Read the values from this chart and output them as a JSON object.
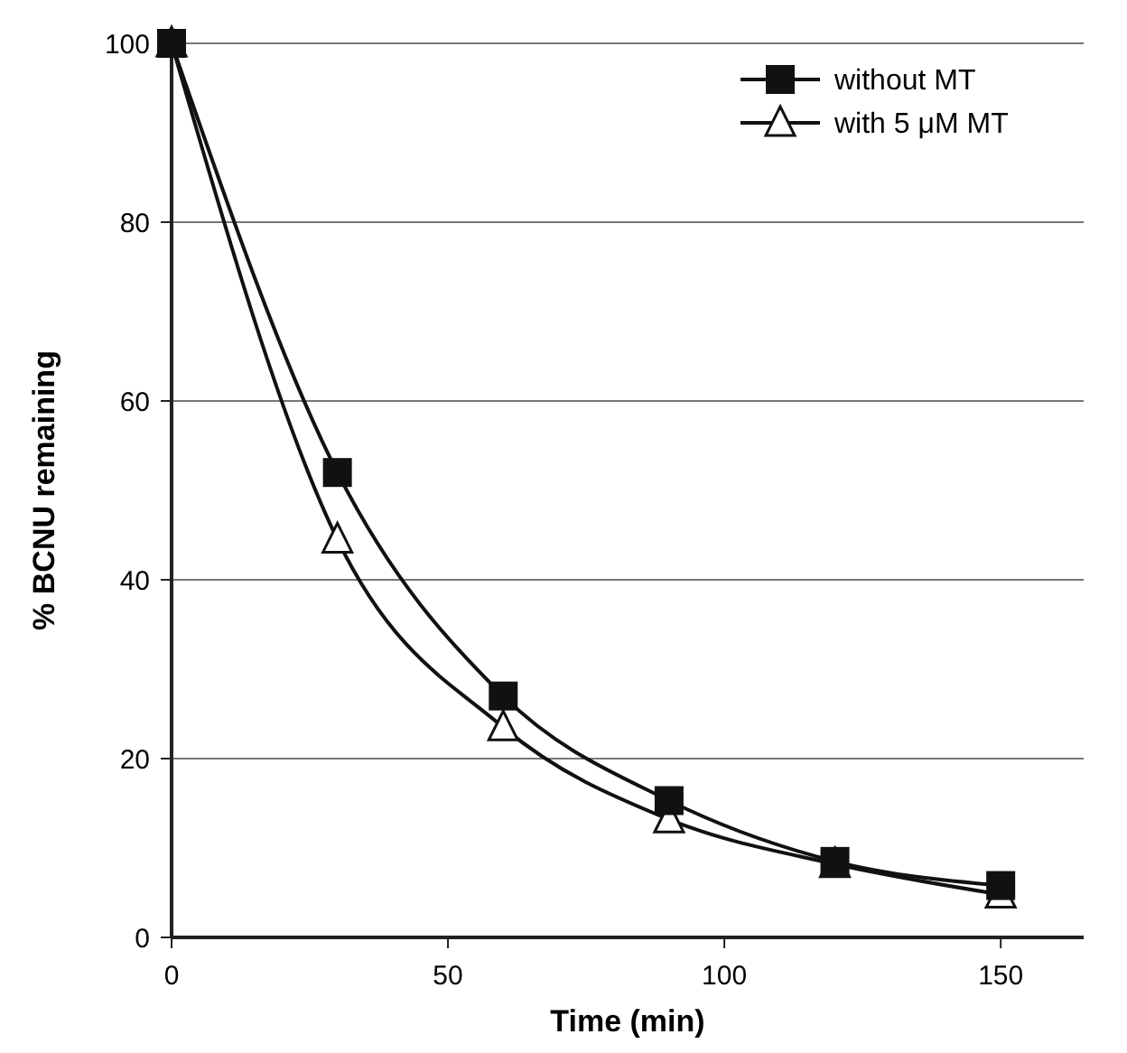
{
  "chart_data": {
    "type": "line",
    "xlabel": "Time (min)",
    "ylabel": "% BCNU remaining",
    "x": [
      0,
      30,
      60,
      90,
      120,
      150
    ],
    "series": [
      {
        "name": "without MT",
        "color": "#111111",
        "marker": "square",
        "values": [
          100,
          52,
          27,
          15.3,
          8.5,
          5.8
        ]
      },
      {
        "name": "with 5 μM MT",
        "color": "#111111",
        "marker": "triangle",
        "values": [
          100,
          44.5,
          23.5,
          13.2,
          8.2,
          4.8
        ]
      }
    ],
    "xlim": [
      0,
      165
    ],
    "xticks": [
      0,
      50,
      100,
      150
    ],
    "ylim": [
      0,
      100
    ],
    "yticks": [
      0,
      20,
      40,
      60,
      80,
      100
    ],
    "grid": "y",
    "legend": "top right"
  }
}
